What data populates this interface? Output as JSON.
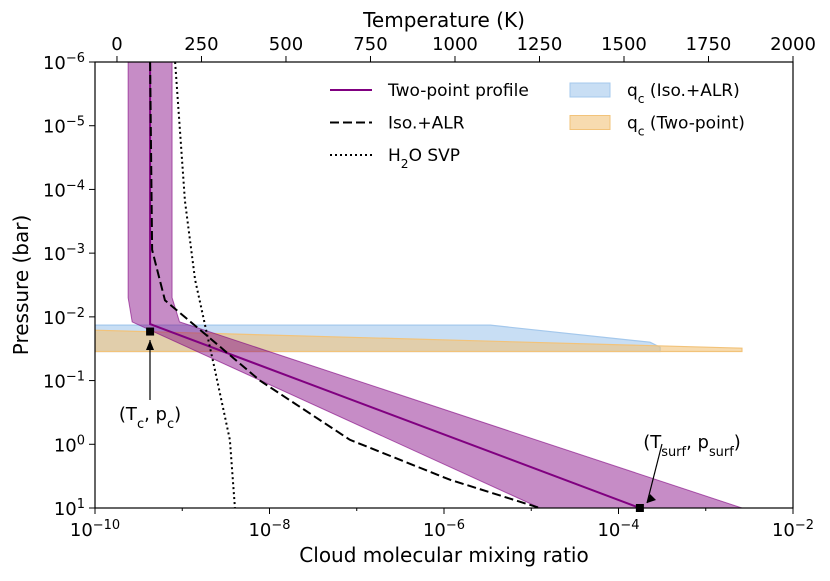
{
  "chart_data": {
    "type": "line",
    "xlabel": "Cloud molecular mixing ratio",
    "x2label": "Temperature (K)",
    "ylabel": "Pressure (bar)",
    "xscale": "log",
    "yscale": "log",
    "xlim": [
      1e-10,
      0.01
    ],
    "xticks": [
      {
        "value": 1e-10,
        "label": [
          "10",
          "−10"
        ]
      },
      {
        "value": 1e-08,
        "label": [
          "10",
          "−8"
        ]
      },
      {
        "value": 1e-06,
        "label": [
          "10",
          "−6"
        ]
      },
      {
        "value": 0.0001,
        "label": [
          "10",
          "−4"
        ]
      },
      {
        "value": 0.01,
        "label": [
          "10",
          "−2"
        ]
      }
    ],
    "xminor_ticks": [
      1e-09,
      1e-07,
      1e-05,
      0.001
    ],
    "x2lim": [
      -65,
      2000
    ],
    "x2ticks": [
      0,
      250,
      500,
      750,
      1000,
      1250,
      1500,
      1750,
      2000
    ],
    "ylim": [
      10,
      1e-06
    ],
    "yticks": [
      {
        "value": 1e-06,
        "label": [
          "10",
          "−6"
        ]
      },
      {
        "value": 1e-05,
        "label": [
          "10",
          "−5"
        ]
      },
      {
        "value": 0.0001,
        "label": [
          "10",
          "−4"
        ]
      },
      {
        "value": 0.001,
        "label": [
          "10",
          "−3"
        ]
      },
      {
        "value": 0.01,
        "label": [
          "10",
          "−2"
        ]
      },
      {
        "value": 0.1,
        "label": [
          "10",
          "−1"
        ]
      },
      {
        "value": 1,
        "label": [
          "10",
          "0"
        ]
      },
      {
        "value": 10,
        "label": [
          "10",
          "1"
        ]
      }
    ],
    "band": {
      "color": "#800080",
      "axis": "x2",
      "y": [
        1e-06,
        0.005,
        0.012,
        10
      ],
      "x_low": [
        33,
        33,
        45,
        1251
      ],
      "x_high": [
        163,
        163,
        185,
        1849
      ]
    },
    "series": [
      {
        "name": [
          "Two-point profile"
        ],
        "color": "#800080",
        "style": "solid",
        "axis": "x2",
        "x": [
          98,
          98,
          1547
        ],
        "y": [
          1e-06,
          0.013,
          10
        ]
      },
      {
        "name": [
          "Iso.+ALR"
        ],
        "color": "#000000",
        "style": "dashed",
        "axis": "x2",
        "x": [
          98,
          104,
          142,
          246,
          423,
          689,
          985,
          1251
        ],
        "y": [
          1e-06,
          0.00089,
          0.0055,
          0.016,
          0.1,
          0.85,
          3.6,
          10
        ]
      },
      {
        "name": [
          "H",
          "2",
          "O SVP"
        ],
        "color": "#000000",
        "style": "dotted",
        "axis": "x2",
        "x": [
          172,
          201,
          231,
          290,
          334,
          349
        ],
        "y": [
          1e-06,
          0.00015,
          0.0026,
          0.069,
          0.85,
          10
        ]
      }
    ],
    "regions": [
      {
        "name": [
          "q",
          "c",
          " (Iso.+ALR)"
        ],
        "color": "#a4c8ec",
        "x": [
          1e-10,
          3.4e-06,
          0.00023,
          0.0003,
          0.0003,
          1e-10
        ],
        "y": [
          0.0135,
          0.0135,
          0.025,
          0.03,
          0.035,
          0.035
        ]
      },
      {
        "name": [
          "q",
          "c",
          " (Two-point)"
        ],
        "color": "#f2c37a",
        "x": [
          1e-10,
          0.0026,
          0.0026,
          1e-10
        ],
        "y": [
          0.0162,
          0.031,
          0.035,
          0.035
        ]
      }
    ],
    "annotations": [
      {
        "label": [
          "(T",
          "c",
          ", p",
          "c",
          ")"
        ],
        "x": 98,
        "y": 0.017
      },
      {
        "label": [
          "(T",
          "surf",
          ", p",
          "surf",
          ")"
        ],
        "x": 1547,
        "y": 10
      }
    ]
  }
}
